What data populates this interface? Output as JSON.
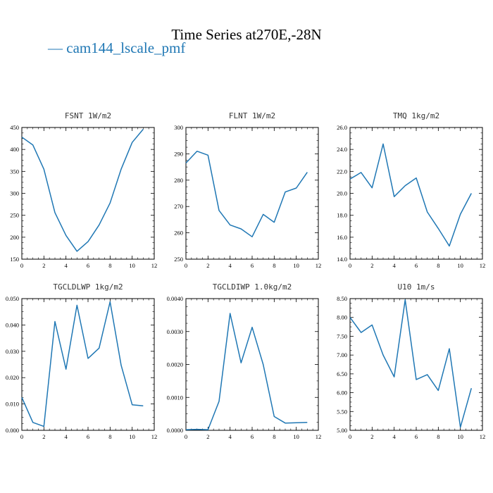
{
  "figure": {
    "title": "Time Series at270E,-28N",
    "legend": "— cam144_lscale_pmf",
    "line_color": "#1f77b4"
  },
  "chart_data": [
    {
      "type": "line",
      "title": "FSNT   1W/m2",
      "x": [
        0,
        1,
        2,
        3,
        4,
        5,
        6,
        7,
        8,
        9,
        10,
        11
      ],
      "xlim": [
        0,
        12
      ],
      "xticks": [
        0,
        2,
        4,
        6,
        8,
        10,
        12
      ],
      "ylim": [
        150,
        450
      ],
      "yticks": [
        150,
        200,
        250,
        300,
        350,
        400,
        450
      ],
      "yticklabels": [
        "150",
        "200",
        "250",
        "300",
        "350",
        "400",
        "450"
      ],
      "series": [
        {
          "values": [
            428,
            410,
            355,
            256,
            204,
            168,
            190,
            228,
            278,
            355,
            416,
            446
          ]
        }
      ]
    },
    {
      "type": "line",
      "title": "FLNT   1W/m2",
      "x": [
        0,
        1,
        2,
        3,
        4,
        5,
        6,
        7,
        8,
        9,
        10,
        11
      ],
      "xlim": [
        0,
        12
      ],
      "xticks": [
        0,
        2,
        4,
        6,
        8,
        10,
        12
      ],
      "ylim": [
        250,
        300
      ],
      "yticks": [
        250,
        260,
        270,
        280,
        290,
        300
      ],
      "yticklabels": [
        "250",
        "260",
        "270",
        "280",
        "290",
        "300"
      ],
      "series": [
        {
          "values": [
            286.5,
            291,
            289.5,
            268.5,
            263,
            261.5,
            258.5,
            267,
            264,
            275.5,
            277,
            283
          ]
        }
      ]
    },
    {
      "type": "line",
      "title": "TMQ   1kg/m2",
      "x": [
        0,
        1,
        2,
        3,
        4,
        5,
        6,
        7,
        8,
        9,
        10,
        11
      ],
      "xlim": [
        0,
        12
      ],
      "xticks": [
        0,
        2,
        4,
        6,
        8,
        10,
        12
      ],
      "ylim": [
        14,
        26
      ],
      "yticks": [
        14,
        16,
        18,
        20,
        22,
        24,
        26
      ],
      "yticklabels": [
        "14.0",
        "16.0",
        "18.0",
        "20.0",
        "22.0",
        "24.0",
        "26.0"
      ],
      "series": [
        {
          "values": [
            21.3,
            21.9,
            20.5,
            24.5,
            19.7,
            20.7,
            21.4,
            18.3,
            16.8,
            15.2,
            18.1,
            20.0
          ]
        }
      ]
    },
    {
      "type": "line",
      "title": "TGCLDLWP   1kg/m2",
      "x": [
        0,
        1,
        2,
        3,
        4,
        5,
        6,
        7,
        8,
        9,
        10,
        11
      ],
      "xlim": [
        0,
        12
      ],
      "xticks": [
        0,
        2,
        4,
        6,
        8,
        10,
        12
      ],
      "ylim": [
        0,
        0.05
      ],
      "yticks": [
        0,
        0.01,
        0.02,
        0.03,
        0.04,
        0.05
      ],
      "yticklabels": [
        "0.000",
        "0.010",
        "0.020",
        "0.030",
        "0.040",
        "0.050"
      ],
      "series": [
        {
          "values": [
            0.0125,
            0.003,
            0.0015,
            0.0413,
            0.0232,
            0.0475,
            0.0273,
            0.0312,
            0.0488,
            0.0247,
            0.0097,
            0.0093
          ]
        }
      ]
    },
    {
      "type": "line",
      "title": "TGCLDIWP   1.0kg/m2",
      "x": [
        0,
        1,
        2,
        3,
        4,
        5,
        6,
        7,
        8,
        9,
        10,
        11
      ],
      "xlim": [
        0,
        12
      ],
      "xticks": [
        0,
        2,
        4,
        6,
        8,
        10,
        12
      ],
      "ylim": [
        0,
        0.004
      ],
      "yticks": [
        0,
        0.001,
        0.002,
        0.003,
        0.004
      ],
      "yticklabels": [
        "0.0000",
        "0.0010",
        "0.0020",
        "0.0030",
        "0.0040"
      ],
      "series": [
        {
          "values": [
            2e-05,
            3e-05,
            2e-05,
            0.00088,
            0.00355,
            0.00205,
            0.00313,
            0.002,
            0.00042,
            0.00022,
            0.00023,
            0.00024
          ]
        }
      ]
    },
    {
      "type": "line",
      "title": "U10   1m/s",
      "x": [
        0,
        1,
        2,
        3,
        4,
        5,
        6,
        7,
        8,
        9,
        10,
        11
      ],
      "xlim": [
        0,
        12
      ],
      "xticks": [
        0,
        2,
        4,
        6,
        8,
        10,
        12
      ],
      "ylim": [
        5,
        8.5
      ],
      "yticks": [
        5,
        5.5,
        6,
        6.5,
        7,
        7.5,
        8,
        8.5
      ],
      "yticklabels": [
        "5.00",
        "5.50",
        "6.00",
        "6.50",
        "7.00",
        "7.50",
        "8.00",
        "8.50"
      ],
      "series": [
        {
          "values": [
            8.0,
            7.6,
            7.8,
            7.0,
            6.42,
            8.47,
            6.35,
            6.48,
            6.06,
            7.17,
            5.08,
            6.12
          ]
        }
      ]
    }
  ]
}
